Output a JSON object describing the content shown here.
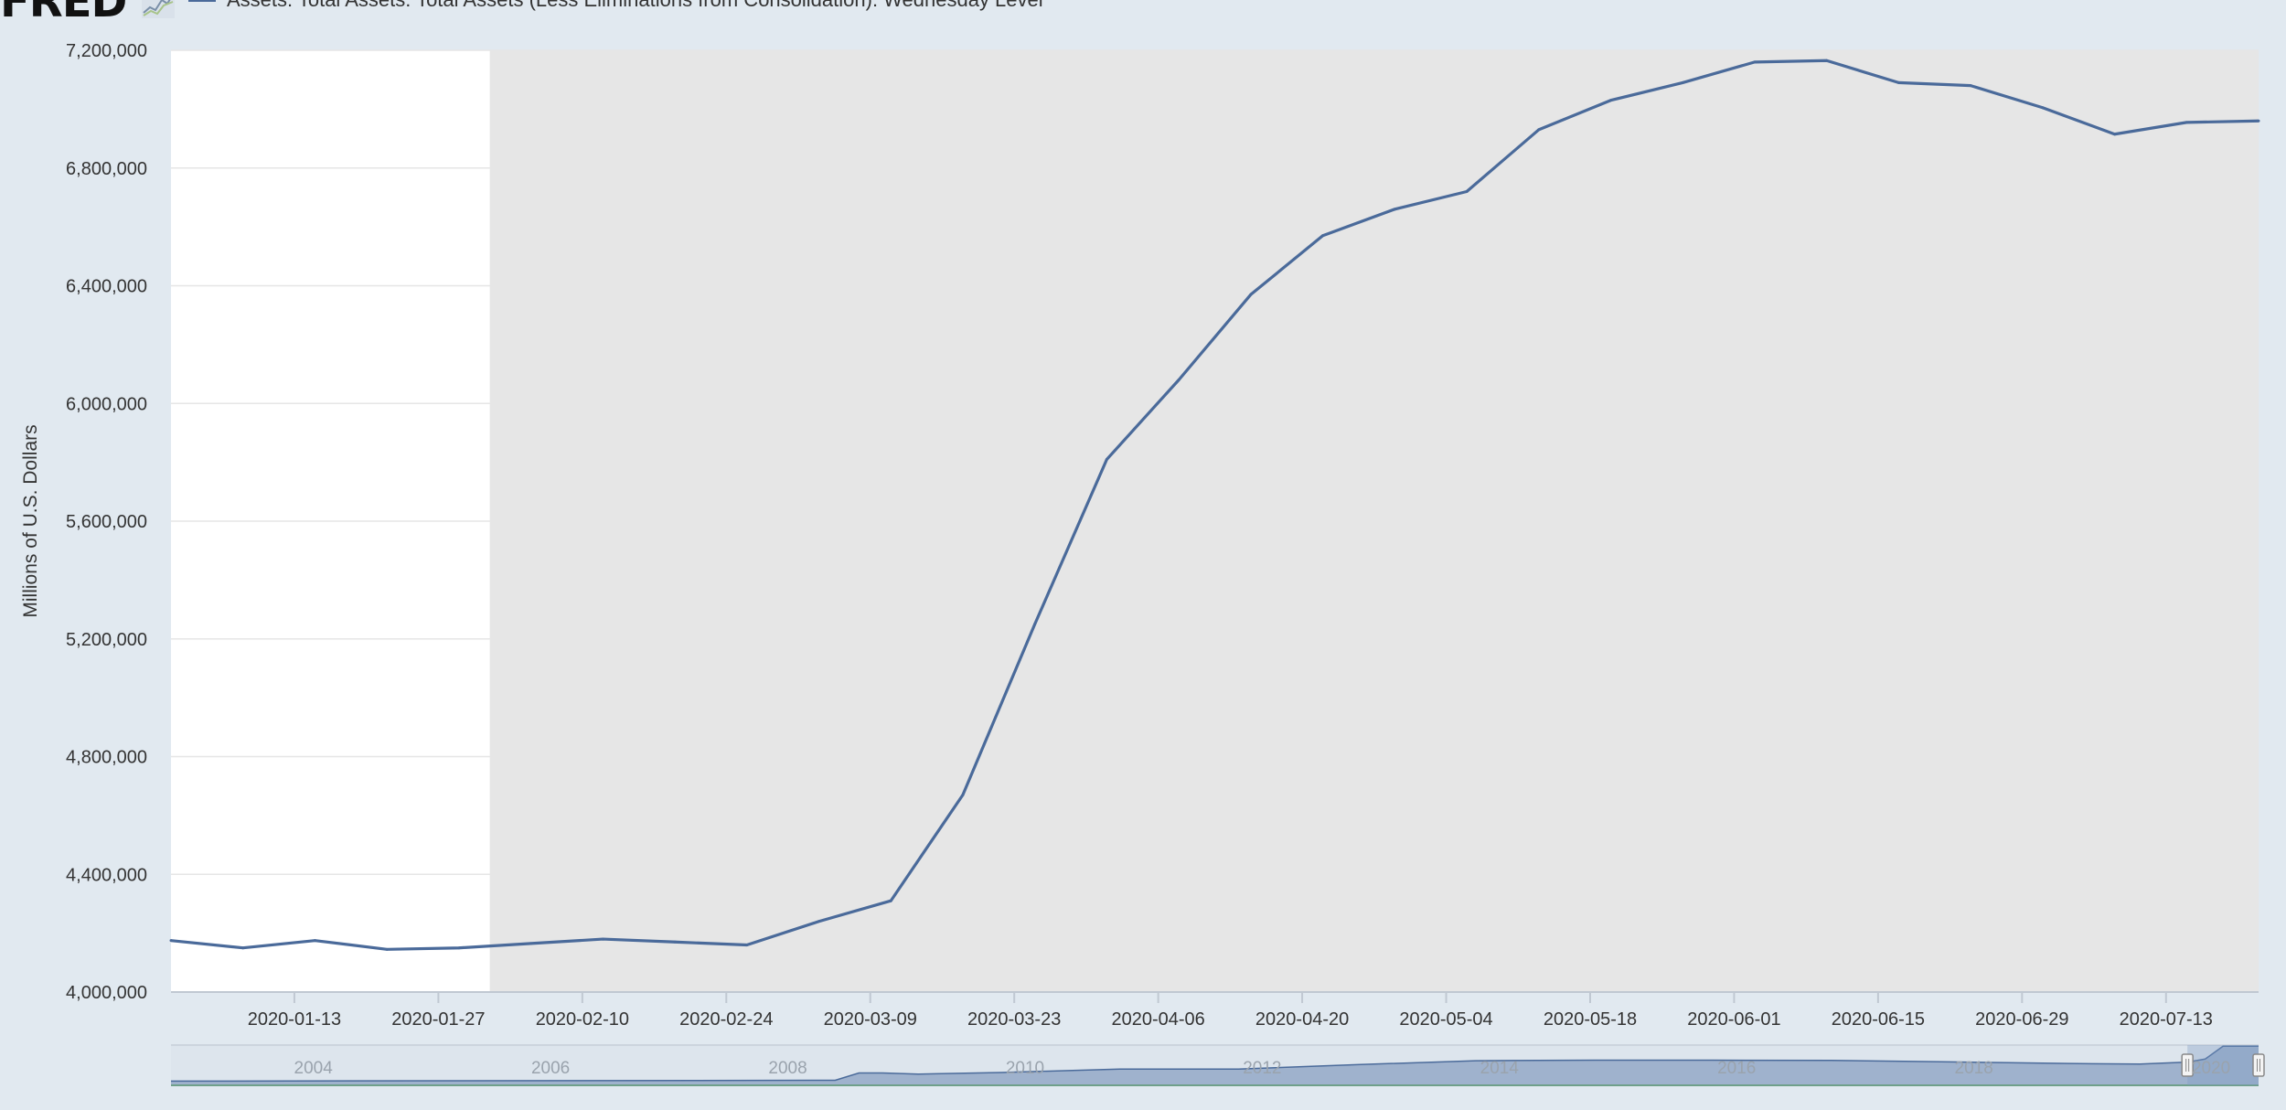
{
  "brand": {
    "logo_text": "FRED",
    "logo_icon": "line-chart-icon"
  },
  "colors": {
    "line": "#4a6a9a",
    "plot_background": "#ffffff",
    "selection_band": "#e6e6e6",
    "page_background": "#e1e9f0",
    "grid": "#e6e6e6",
    "navigator_fill": "#94a9c7"
  },
  "legend": {
    "series_label": "Assets: Total Assets: Total Assets (Less Eliminations from Consolidation): Wednesday Level"
  },
  "chart_data": {
    "type": "line",
    "ylabel": "Millions of U.S. Dollars",
    "xlabel": "",
    "grid": true,
    "ylim": [
      4000000,
      7200000
    ],
    "xlim": [
      "2020-01-01",
      "2020-07-22"
    ],
    "shaded_region": [
      "2020-02-01",
      "2020-07-22"
    ],
    "yticks": [
      4000000,
      4400000,
      4800000,
      5200000,
      5600000,
      6000000,
      6400000,
      6800000,
      7200000
    ],
    "ytick_labels": [
      "4,000,000",
      "4,400,000",
      "4,800,000",
      "5,200,000",
      "5,600,000",
      "6,000,000",
      "6,400,000",
      "6,800,000",
      "7,200,000"
    ],
    "xtick_labels": [
      "2020-01-13",
      "2020-01-27",
      "2020-02-10",
      "2020-02-24",
      "2020-03-09",
      "2020-03-23",
      "2020-04-06",
      "2020-04-20",
      "2020-05-04",
      "2020-05-18",
      "2020-06-01",
      "2020-06-15",
      "2020-06-29",
      "2020-07-13"
    ],
    "series": [
      {
        "name": "Assets: Total Assets: Total Assets (Less Eliminations from Consolidation): Wednesday Level",
        "x": [
          "2020-01-01",
          "2020-01-08",
          "2020-01-15",
          "2020-01-22",
          "2020-01-29",
          "2020-02-05",
          "2020-02-12",
          "2020-02-19",
          "2020-02-26",
          "2020-03-04",
          "2020-03-11",
          "2020-03-18",
          "2020-03-25",
          "2020-04-01",
          "2020-04-08",
          "2020-04-15",
          "2020-04-22",
          "2020-04-29",
          "2020-05-06",
          "2020-05-13",
          "2020-05-20",
          "2020-05-27",
          "2020-06-03",
          "2020-06-10",
          "2020-06-17",
          "2020-06-24",
          "2020-07-01",
          "2020-07-08",
          "2020-07-15",
          "2020-07-22"
        ],
        "values": [
          4175000,
          4150000,
          4175000,
          4145000,
          4150000,
          4165000,
          4180000,
          4170000,
          4160000,
          4240000,
          4310000,
          4670000,
          5250000,
          5810000,
          6080000,
          6370000,
          6570000,
          6660000,
          6720000,
          6930000,
          7030000,
          7090000,
          7160000,
          7165000,
          7090000,
          7080000,
          7005000,
          6915000,
          6955000,
          6960000
        ]
      }
    ],
    "navigator": {
      "year_labels": [
        "2004",
        "2006",
        "2008",
        "2010",
        "2012",
        "2014",
        "2016",
        "2018",
        "2020"
      ],
      "xlim": [
        2003.0,
        2020.6
      ],
      "x": [
        2003.0,
        2008.6,
        2008.8,
        2009.0,
        2009.3,
        2010.0,
        2011.0,
        2012.0,
        2013.0,
        2014.0,
        2015.0,
        2016.0,
        2017.0,
        2018.0,
        2019.0,
        2019.6,
        2020.0,
        2020.15,
        2020.3,
        2020.6
      ],
      "values": [
        0.75,
        0.9,
        2.2,
        2.2,
        2.0,
        2.3,
        2.9,
        2.9,
        3.7,
        4.4,
        4.5,
        4.5,
        4.45,
        4.2,
        3.9,
        3.8,
        4.15,
        4.7,
        7.0,
        7.0
      ],
      "ymax": 7.2,
      "selected_range": [
        2020.0,
        2020.6
      ]
    }
  }
}
